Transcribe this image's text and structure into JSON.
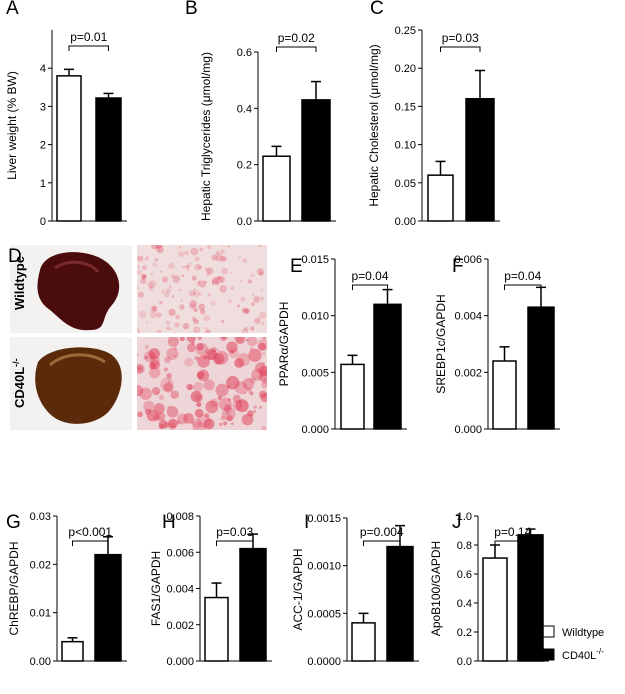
{
  "chart_data": [
    {
      "type": "bar",
      "letter": "A",
      "ylabel": "Liver weight (% BW)",
      "annotation": "p=0.01",
      "values": [
        3.8,
        3.22
      ],
      "errors": [
        0.17,
        0.12
      ],
      "ylim": [
        0,
        5
      ],
      "yticks": [
        0,
        1,
        2,
        3,
        4
      ]
    },
    {
      "type": "bar",
      "letter": "B",
      "ylabel": "Hepatic Triglycerides (μmol/mg)",
      "annotation": "p=0.02",
      "values": [
        0.23,
        0.43
      ],
      "errors": [
        0.035,
        0.065
      ],
      "ylim": [
        0,
        0.6
      ],
      "yticks": [
        {
          "value": 0,
          "label": "0.0"
        },
        0.2,
        0.4,
        0.6
      ]
    },
    {
      "type": "bar",
      "letter": "C",
      "ylabel": "Hepatic Cholesterol (μmol/mg)",
      "annotation": "p=0.03",
      "values": [
        0.06,
        0.16
      ],
      "errors": [
        0.018,
        0.037
      ],
      "ylim": [
        0,
        0.25
      ],
      "yticks": [
        {
          "value": 0,
          "label": "0.00"
        },
        0.05,
        {
          "value": 0.1,
          "label": "0.10"
        },
        0.15,
        {
          "value": 0.2,
          "label": "0.20"
        },
        0.25
      ]
    },
    {
      "type": "bar",
      "letter": "E",
      "ylabel": "PPARα/GAPDH",
      "annotation": "p=0.04",
      "values": [
        0.0057,
        0.011
      ],
      "errors": [
        0.0008,
        0.0013
      ],
      "ylim": [
        0,
        0.015
      ],
      "yticks": [
        {
          "value": 0,
          "label": "0.000"
        },
        0.005,
        {
          "value": 0.01,
          "label": "0.010"
        },
        0.015
      ]
    },
    {
      "type": "bar",
      "letter": "F",
      "ylabel": "SREBP1c/GAPDH",
      "annotation": "p=0.04",
      "values": [
        0.0024,
        0.0043
      ],
      "errors": [
        0.0005,
        0.0007
      ],
      "ylim": [
        0,
        0.006
      ],
      "yticks": [
        {
          "value": 0,
          "label": "0.000"
        },
        0.002,
        0.004,
        0.006
      ]
    },
    {
      "type": "bar",
      "letter": "G",
      "ylabel": "ChREBP/GAPDH",
      "annotation": "p<0.001",
      "values": [
        0.004,
        0.022
      ],
      "errors": [
        0.0008,
        0.0037
      ],
      "ylim": [
        0,
        0.03
      ],
      "yticks": [
        {
          "value": 0,
          "label": "0.00"
        },
        0.01,
        0.02,
        0.03
      ]
    },
    {
      "type": "bar",
      "letter": "H",
      "ylabel": "FAS1/GAPDH",
      "annotation": "p=0.03",
      "values": [
        0.0035,
        0.0062
      ],
      "errors": [
        0.0008,
        0.0008
      ],
      "ylim": [
        0,
        0.008
      ],
      "yticks": [
        {
          "value": 0,
          "label": "0.000"
        },
        0.002,
        0.004,
        0.006,
        0.008
      ]
    },
    {
      "type": "bar",
      "letter": "I",
      "ylabel": "ACC-1/GAPDH",
      "annotation": "p=0.004",
      "values": [
        0.0004,
        0.0012
      ],
      "errors": [
        0.0001,
        0.00022
      ],
      "ylim": [
        0,
        0.0015
      ],
      "yticks": [
        {
          "value": 0,
          "label": "0.0000"
        },
        0.0005,
        {
          "value": 0.001,
          "label": "0.0010"
        },
        0.0015
      ]
    },
    {
      "type": "bar",
      "letter": "J",
      "ylabel": "ApoB100/GAPDH",
      "annotation": "p=0.14",
      "values": [
        0.71,
        0.87
      ],
      "errors": [
        0.09,
        0.04
      ],
      "ylim": [
        0,
        1
      ],
      "yticks": [
        {
          "value": 0,
          "label": "0.0"
        },
        0.2,
        0.4,
        0.6,
        0.8,
        {
          "value": 1,
          "label": "1.0"
        }
      ]
    }
  ],
  "legend": {
    "entries": [
      {
        "name": "Wildtype",
        "color": "#ffffff"
      },
      {
        "name": "CD40L",
        "sup": "-/-",
        "color": "#000000"
      }
    ]
  },
  "panel_d": {
    "letter": "D",
    "rows": [
      {
        "name": "Wildtype"
      },
      {
        "name": "CD40L",
        "sup": "-/-"
      }
    ]
  }
}
